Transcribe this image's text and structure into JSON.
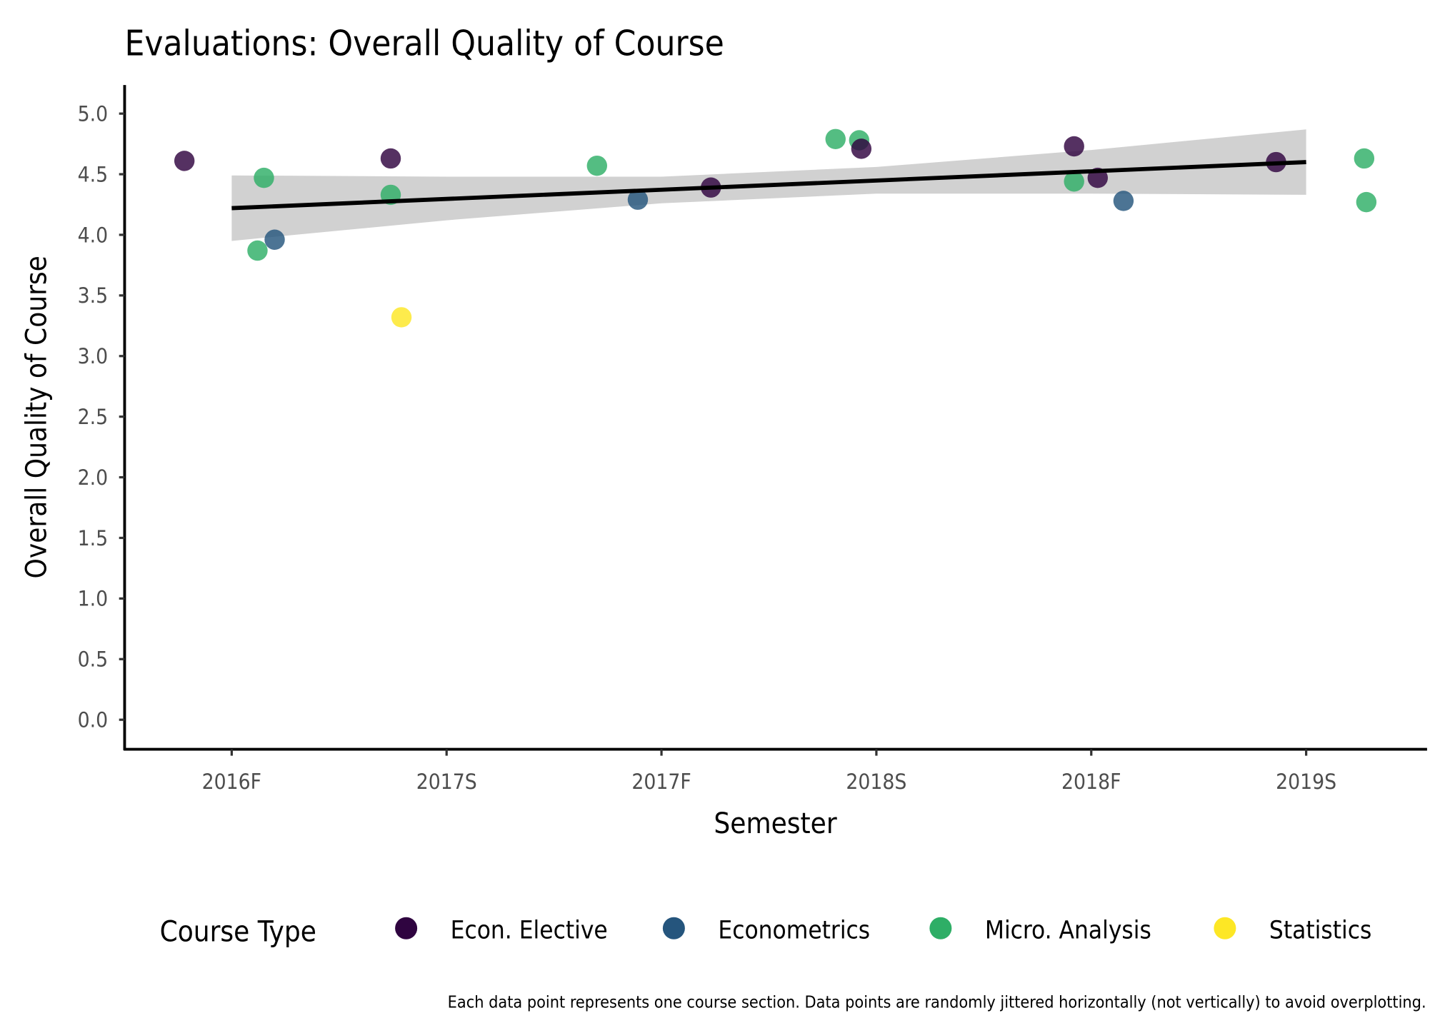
{
  "chart_data": {
    "type": "scatter",
    "title": "Evaluations: Overall Quality of Course",
    "xlabel": "Semester",
    "ylabel": "Overall Quality of Course",
    "caption": "Each data point represents one course section. Data points are randomly jittered horizontally (not vertically) to avoid overplotting.",
    "x_categories": [
      "2016F",
      "2017S",
      "2017F",
      "2018S",
      "2018F",
      "2019S"
    ],
    "ylim": [
      0,
      5
    ],
    "y_ticks": [
      "0.0",
      "0.5",
      "1.0",
      "1.5",
      "2.0",
      "2.5",
      "3.0",
      "3.5",
      "4.0",
      "4.5",
      "5.0"
    ],
    "grid": false,
    "legend": {
      "title": "Course Type",
      "placement": "bottom",
      "entries": [
        "Econ. Elective",
        "Econometrics",
        "Micro. Analysis",
        "Statistics"
      ]
    },
    "colors": {
      "Econ. Elective": "#2f0440",
      "Econometrics": "#25557d",
      "Micro. Analysis": "#2eae66",
      "Statistics": "#fde725"
    },
    "points": [
      {
        "x": -0.22,
        "y": 4.61,
        "type": "Econ. Elective"
      },
      {
        "x": 0.15,
        "y": 4.47,
        "type": "Micro. Analysis"
      },
      {
        "x": 0.12,
        "y": 3.87,
        "type": "Micro. Analysis"
      },
      {
        "x": 0.2,
        "y": 3.96,
        "type": "Econometrics"
      },
      {
        "x": 0.74,
        "y": 4.63,
        "type": "Econ. Elective"
      },
      {
        "x": 0.74,
        "y": 4.33,
        "type": "Micro. Analysis"
      },
      {
        "x": 0.79,
        "y": 3.32,
        "type": "Statistics"
      },
      {
        "x": 1.7,
        "y": 4.57,
        "type": "Micro. Analysis"
      },
      {
        "x": 1.89,
        "y": 4.29,
        "type": "Econometrics"
      },
      {
        "x": 2.23,
        "y": 4.39,
        "type": "Econ. Elective"
      },
      {
        "x": 2.81,
        "y": 4.79,
        "type": "Micro. Analysis"
      },
      {
        "x": 2.92,
        "y": 4.78,
        "type": "Micro. Analysis"
      },
      {
        "x": 2.93,
        "y": 4.71,
        "type": "Econ. Elective"
      },
      {
        "x": 3.92,
        "y": 4.73,
        "type": "Econ. Elective"
      },
      {
        "x": 3.92,
        "y": 4.44,
        "type": "Micro. Analysis"
      },
      {
        "x": 4.03,
        "y": 4.47,
        "type": "Econ. Elective"
      },
      {
        "x": 4.15,
        "y": 4.28,
        "type": "Econometrics"
      },
      {
        "x": 4.86,
        "y": 4.6,
        "type": "Econ. Elective"
      },
      {
        "x": 5.27,
        "y": 4.63,
        "type": "Micro. Analysis"
      },
      {
        "x": 5.28,
        "y": 4.27,
        "type": "Micro. Analysis"
      }
    ],
    "trend": {
      "x": [
        0,
        1,
        2,
        3,
        4,
        5
      ],
      "y": [
        4.22,
        4.3,
        4.37,
        4.45,
        4.52,
        4.6
      ],
      "ymin": [
        3.95,
        4.12,
        4.26,
        4.34,
        4.34,
        4.33
      ],
      "ymax": [
        4.49,
        4.48,
        4.48,
        4.56,
        4.7,
        4.87
      ]
    }
  }
}
